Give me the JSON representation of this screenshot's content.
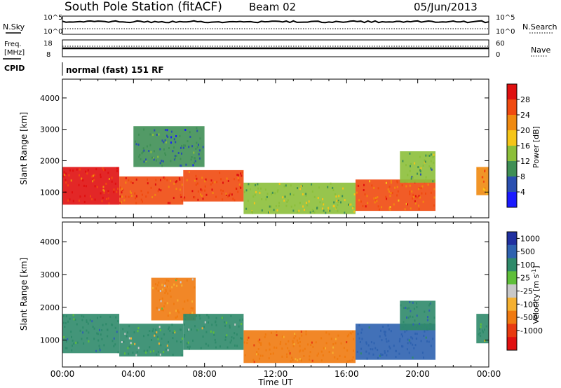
{
  "header": {
    "title": "South Pole Station (fitACF)",
    "beam": "Beam 02",
    "date": "05/Jun/2013"
  },
  "aux": {
    "nsky_label": "N.Sky",
    "nsearch_label": "N.Search",
    "noise_ticks_left": [
      "10^5",
      "10^0"
    ],
    "noise_ticks_right": [
      "10^5",
      "10^0"
    ],
    "freq_label_1": "Freq.",
    "freq_label_2": "[MHz]",
    "freq_ticks": [
      "18",
      "8"
    ],
    "nave_label": "Nave",
    "nave_ticks": [
      "60",
      "0"
    ],
    "cpid_label": "CPID",
    "cpid_value": "normal (fast) 151 RF"
  },
  "x_axis": {
    "label": "Time UT",
    "ticks": [
      "00:00",
      "04:00",
      "08:00",
      "12:00",
      "16:00",
      "20:00",
      "00:00"
    ]
  },
  "y_axis": {
    "label": "Slant Range [km]",
    "ticks": [
      "1000",
      "2000",
      "3000",
      "4000"
    ]
  },
  "power_colorbar": {
    "label": "Power [dB]",
    "ticks": [
      "28",
      "24",
      "20",
      "16",
      "12",
      "8",
      "4"
    ],
    "colors": [
      "#1a1aff",
      "#2a4fb0",
      "#3f8f55",
      "#8cbf3a",
      "#f5c518",
      "#f08a10",
      "#f04a10",
      "#e01010"
    ]
  },
  "velocity_colorbar": {
    "label": "Velocity [m s",
    "label_sup": "-1",
    "label_end": "]",
    "ticks": [
      "1000",
      "500",
      "100",
      "25",
      "-25",
      "-100",
      "-500",
      "-1000"
    ],
    "colors": [
      "#2030a0",
      "#2e62b0",
      "#2f8a6a",
      "#5fbf3a",
      "#c8c8c8",
      "#f5b030",
      "#f07a10",
      "#e83a10",
      "#e01010"
    ]
  },
  "chart_data": [
    {
      "type": "heatmap",
      "title": "Power",
      "xlabel": "Time UT",
      "ylabel": "Slant Range [km]",
      "xlim": [
        0,
        24
      ],
      "ylim": [
        180,
        4600
      ],
      "zlabel": "Power [dB]",
      "zlim": [
        0,
        32
      ],
      "regions": [
        {
          "t": [
            0.0,
            3.2
          ],
          "r": [
            600,
            1800
          ],
          "power": 28
        },
        {
          "t": [
            3.2,
            6.8
          ],
          "r": [
            600,
            1500
          ],
          "power": 26
        },
        {
          "t": [
            6.8,
            10.2
          ],
          "r": [
            700,
            1700
          ],
          "power": 26
        },
        {
          "t": [
            4.0,
            8.0
          ],
          "r": [
            1800,
            3100
          ],
          "power": 8
        },
        {
          "t": [
            10.2,
            16.5
          ],
          "r": [
            300,
            1300
          ],
          "power": 14
        },
        {
          "t": [
            16.5,
            21.0
          ],
          "r": [
            400,
            1400
          ],
          "power": 24
        },
        {
          "t": [
            19.0,
            21.0
          ],
          "r": [
            1300,
            2300
          ],
          "power": 12
        },
        {
          "t": [
            23.3,
            24.0
          ],
          "r": [
            900,
            1800
          ],
          "power": 22
        }
      ]
    },
    {
      "type": "heatmap",
      "title": "Velocity",
      "xlabel": "Time UT",
      "ylabel": "Slant Range [km]",
      "xlim": [
        0,
        24
      ],
      "ylim": [
        180,
        4600
      ],
      "zlabel": "Velocity [m s-1]",
      "zlim": [
        -1000,
        1000
      ],
      "regions": [
        {
          "t": [
            0.0,
            3.2
          ],
          "r": [
            600,
            1800
          ],
          "velocity": 300
        },
        {
          "t": [
            3.2,
            6.8
          ],
          "r": [
            500,
            1500
          ],
          "velocity": 150
        },
        {
          "t": [
            5.0,
            7.5
          ],
          "r": [
            1600,
            2900
          ],
          "velocity": -200
        },
        {
          "t": [
            6.8,
            10.2
          ],
          "r": [
            700,
            1800
          ],
          "velocity": 200
        },
        {
          "t": [
            10.2,
            16.5
          ],
          "r": [
            300,
            1300
          ],
          "velocity": -300
        },
        {
          "t": [
            16.5,
            21.0
          ],
          "r": [
            400,
            1500
          ],
          "velocity": 700
        },
        {
          "t": [
            19.0,
            21.0
          ],
          "r": [
            1300,
            2200
          ],
          "velocity": 400
        },
        {
          "t": [
            23.3,
            24.0
          ],
          "r": [
            900,
            1800
          ],
          "velocity": 200
        }
      ]
    }
  ]
}
